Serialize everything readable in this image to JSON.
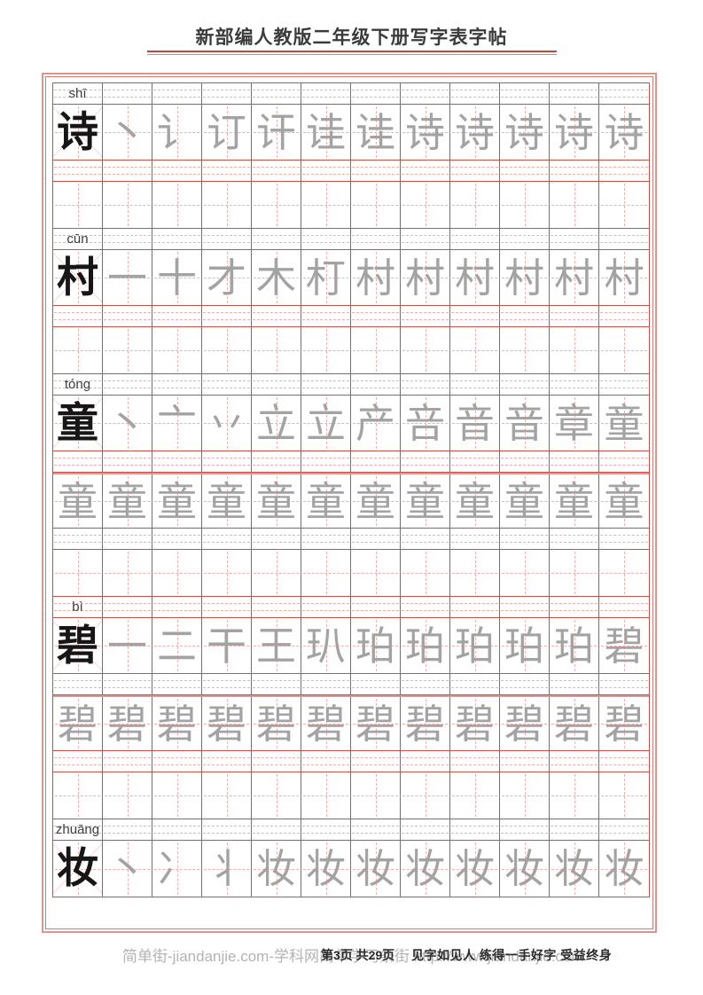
{
  "title": "新部编人教版二年级下册写字表字帖",
  "footer": {
    "watermark": "简单街-jiandanjie.com-学科网简单学习条街 http://www.jiandanjie.com",
    "page_info": "第3页 共29页",
    "motto": "见字如见人 练得一手好字 受益终身"
  },
  "colors": {
    "grid_line": "#c4524a",
    "dash_line": "#f0aeae",
    "diag_line": "#f8d9d5",
    "outer_border": "#e0938c",
    "black_char": "#161616",
    "gray_char": "#a3a3a3",
    "pinyin_text": "#3d3d3d",
    "underline_red": "#c2453c",
    "watermark": "#b3b3b3",
    "footer_text": "#2b2b2b"
  },
  "grid": {
    "columns": 12,
    "rows": [
      {
        "type": "pinyin",
        "label": "shī"
      },
      {
        "type": "chars",
        "black": "诗",
        "gray": [
          "丶",
          "讠",
          "订",
          "讦",
          "诖",
          "诖",
          "诗",
          "诗",
          "诗",
          "诗",
          "诗"
        ]
      },
      {
        "type": "pinyin",
        "label": ""
      },
      {
        "type": "practice"
      },
      {
        "type": "pinyin",
        "label": "cūn"
      },
      {
        "type": "chars",
        "black": "村",
        "gray": [
          "一",
          "十",
          "才",
          "木",
          "朾",
          "村",
          "村",
          "村",
          "村",
          "村",
          "村"
        ]
      },
      {
        "type": "pinyin",
        "label": ""
      },
      {
        "type": "practice"
      },
      {
        "type": "pinyin",
        "label": "tóng"
      },
      {
        "type": "chars",
        "black": "童",
        "gray": [
          "丶",
          "亠",
          "丷",
          "立",
          "立",
          "产",
          "咅",
          "音",
          "音",
          "章",
          "童"
        ]
      },
      {
        "type": "pinyin",
        "label": ""
      },
      {
        "type": "chars",
        "black": "",
        "thick_top": true,
        "gray": [
          "童",
          "童",
          "童",
          "童",
          "童",
          "童",
          "童",
          "童",
          "童",
          "童",
          "童",
          "童"
        ]
      },
      {
        "type": "pinyin",
        "label": ""
      },
      {
        "type": "practice"
      },
      {
        "type": "pinyin",
        "label": "bì"
      },
      {
        "type": "chars",
        "black": "碧",
        "gray": [
          "一",
          "二",
          "干",
          "王",
          "玐",
          "珀",
          "珀",
          "珀",
          "珀",
          "珀",
          "碧"
        ]
      },
      {
        "type": "pinyin",
        "label": ""
      },
      {
        "type": "chars",
        "black": "",
        "thick_top": true,
        "gray": [
          "碧",
          "碧",
          "碧",
          "碧",
          "碧",
          "碧",
          "碧",
          "碧",
          "碧",
          "碧",
          "碧",
          "碧"
        ]
      },
      {
        "type": "pinyin",
        "label": ""
      },
      {
        "type": "practice"
      },
      {
        "type": "pinyin",
        "label": "zhuāng"
      },
      {
        "type": "chars",
        "black": "妆",
        "gray": [
          "丶",
          "冫",
          "丬",
          "妆",
          "妆",
          "妆",
          "妆",
          "妆",
          "妆",
          "妆",
          "妆"
        ]
      }
    ]
  }
}
